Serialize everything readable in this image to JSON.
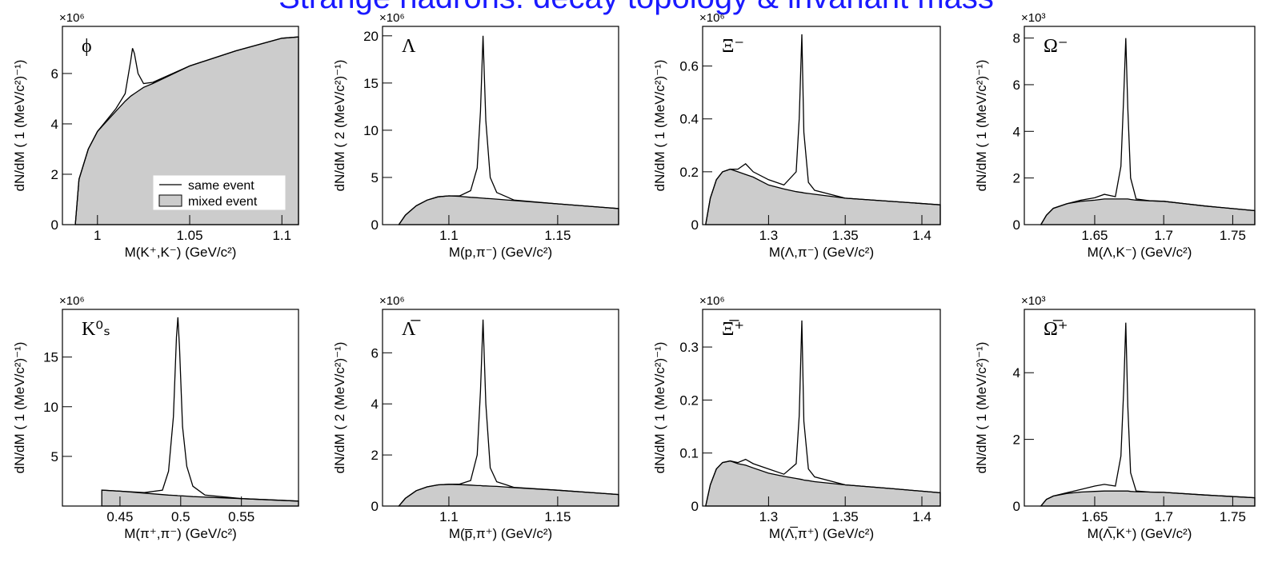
{
  "title": "Strange hadrons: decay topology & invariant mass",
  "chart_data": [
    {
      "type": "line",
      "label": "ϕ",
      "multiplier": "×10⁶",
      "xlabel": "M(K⁺,K⁻) (GeV/c²)",
      "ylabel": "dN/dM ( 1 (MeV/c²)⁻¹)",
      "xlim": [
        0.981,
        1.109
      ],
      "xticks": [
        1,
        1.05,
        1.1
      ],
      "ylim": [
        0,
        7.87
      ],
      "yticks": [
        0,
        2,
        4,
        6
      ],
      "legend": "lower right",
      "x": [
        0.988,
        0.99,
        0.995,
        1.0,
        1.01,
        1.015,
        1.018,
        1.019,
        1.02,
        1.022,
        1.025,
        1.03,
        1.05,
        1.075,
        1.1,
        1.109
      ],
      "series": [
        {
          "name": "mixed event",
          "color": "#cccccc",
          "fill": true,
          "values": [
            0,
            1.8,
            3.0,
            3.7,
            4.5,
            4.9,
            5.1,
            5.15,
            5.2,
            5.3,
            5.45,
            5.6,
            6.3,
            6.9,
            7.4,
            7.45
          ]
        },
        {
          "name": "same event",
          "color": "#000000",
          "values": [
            0,
            1.8,
            3.0,
            3.7,
            4.6,
            5.2,
            6.5,
            7.0,
            6.8,
            6.0,
            5.6,
            5.65,
            6.3,
            6.9,
            7.4,
            7.45
          ]
        }
      ]
    },
    {
      "type": "line",
      "label": "Λ",
      "multiplier": "×10⁶",
      "xlabel": "M(p,π⁻) (GeV/c²)",
      "ylabel": "dN/dM ( 2 (MeV/c²)⁻¹)",
      "xlim": [
        1.0695,
        1.178
      ],
      "xticks": [
        1.1,
        1.15
      ],
      "ylim": [
        0,
        21
      ],
      "yticks": [
        0,
        5,
        10,
        15,
        20
      ],
      "x": [
        1.077,
        1.08,
        1.085,
        1.09,
        1.095,
        1.1,
        1.105,
        1.11,
        1.113,
        1.1145,
        1.1157,
        1.117,
        1.119,
        1.122,
        1.13,
        1.15,
        1.178
      ],
      "series": [
        {
          "color": "#cccccc",
          "fill": true,
          "values": [
            0,
            1.0,
            2.0,
            2.6,
            2.95,
            3.05,
            3.0,
            2.9,
            2.85,
            2.83,
            2.8,
            2.78,
            2.75,
            2.7,
            2.55,
            2.2,
            1.7
          ]
        },
        {
          "color": "#000000",
          "values": [
            0,
            1.0,
            2.0,
            2.6,
            2.95,
            3.05,
            3.05,
            3.6,
            6,
            12,
            20,
            11,
            5,
            3.4,
            2.6,
            2.2,
            1.7
          ]
        }
      ]
    },
    {
      "type": "line",
      "label": "Ξ⁻",
      "multiplier": "×10⁶",
      "xlabel": "M(Λ,π⁻) (GeV/c²)",
      "ylabel": "dN/dM ( 1 (MeV/c²)⁻¹)",
      "xlim": [
        1.257,
        1.412
      ],
      "xticks": [
        1.3,
        1.35,
        1.4
      ],
      "ylim": [
        0,
        0.75
      ],
      "yticks": [
        0,
        0.2,
        0.4,
        0.6
      ],
      "x": [
        1.259,
        1.262,
        1.266,
        1.27,
        1.275,
        1.28,
        1.285,
        1.29,
        1.3,
        1.31,
        1.318,
        1.32,
        1.3217,
        1.323,
        1.326,
        1.33,
        1.35,
        1.38,
        1.412
      ],
      "series": [
        {
          "color": "#cccccc",
          "fill": true,
          "values": [
            0,
            0.1,
            0.17,
            0.2,
            0.21,
            0.2,
            0.19,
            0.18,
            0.15,
            0.135,
            0.125,
            0.123,
            0.122,
            0.12,
            0.118,
            0.115,
            0.1,
            0.088,
            0.075
          ]
        },
        {
          "color": "#000000",
          "values": [
            0,
            0.1,
            0.17,
            0.2,
            0.21,
            0.21,
            0.23,
            0.2,
            0.17,
            0.15,
            0.2,
            0.4,
            0.72,
            0.35,
            0.16,
            0.13,
            0.1,
            0.088,
            0.075
          ]
        }
      ]
    },
    {
      "type": "line",
      "label": "Ω⁻",
      "multiplier": "×10³",
      "xlabel": "M(Λ,K⁻) (GeV/c²)",
      "ylabel": "dN/dM ( 1 (MeV/c²)⁻¹)",
      "xlim": [
        1.599,
        1.766
      ],
      "xticks": [
        1.65,
        1.7,
        1.75
      ],
      "ylim": [
        0,
        8.5
      ],
      "yticks": [
        0,
        2,
        4,
        6,
        8
      ],
      "x": [
        1.611,
        1.615,
        1.62,
        1.63,
        1.64,
        1.65,
        1.657,
        1.665,
        1.669,
        1.671,
        1.6725,
        1.674,
        1.676,
        1.68,
        1.69,
        1.7,
        1.73,
        1.766
      ],
      "series": [
        {
          "color": "#cccccc",
          "fill": true,
          "values": [
            0,
            0.4,
            0.7,
            0.9,
            1.0,
            1.05,
            1.1,
            1.1,
            1.1,
            1.1,
            1.1,
            1.1,
            1.08,
            1.05,
            1.02,
            1.0,
            0.8,
            0.6
          ]
        },
        {
          "color": "#000000",
          "values": [
            0,
            0.4,
            0.7,
            0.9,
            1.05,
            1.15,
            1.3,
            1.2,
            2.5,
            5.5,
            8.0,
            5.0,
            2.0,
            1.1,
            1.02,
            1.0,
            0.8,
            0.6
          ]
        }
      ]
    },
    {
      "type": "line",
      "label": "K⁰ₛ",
      "multiplier": "×10⁶",
      "xlabel": "M(π⁺,π⁻) (GeV/c²)",
      "ylabel": "dN/dM ( 1 (MeV/c²)⁻¹)",
      "xlim": [
        0.4026,
        0.597
      ],
      "xticks": [
        0.45,
        0.5,
        0.55
      ],
      "ylim": [
        0,
        19.8
      ],
      "yticks": [
        5,
        10,
        15
      ],
      "x": [
        0.435,
        0.45,
        0.47,
        0.485,
        0.49,
        0.494,
        0.4965,
        0.4977,
        0.499,
        0.5015,
        0.505,
        0.51,
        0.52,
        0.55,
        0.597
      ],
      "series": [
        {
          "color": "#cccccc",
          "fill": true,
          "values": [
            1.6,
            1.5,
            1.3,
            1.15,
            1.1,
            1.08,
            1.06,
            1.05,
            1.04,
            1.02,
            1.0,
            0.95,
            0.9,
            0.75,
            0.5
          ]
        },
        {
          "color": "#000000",
          "values": [
            1.6,
            1.5,
            1.35,
            1.6,
            3.5,
            9,
            17,
            19,
            16,
            8,
            4,
            2,
            1.1,
            0.75,
            0.5
          ]
        }
      ]
    },
    {
      "type": "line",
      "label": "Λ̅",
      "multiplier": "×10⁶",
      "xlabel": "M(p̅,π⁺) (GeV/c²)",
      "ylabel": "dN/dM ( 2 (MeV/c²)⁻¹)",
      "xlim": [
        1.0695,
        1.178
      ],
      "xticks": [
        1.1,
        1.15
      ],
      "ylim": [
        0,
        7.7
      ],
      "yticks": [
        0,
        2,
        4,
        6
      ],
      "x": [
        1.077,
        1.08,
        1.085,
        1.09,
        1.095,
        1.1,
        1.105,
        1.11,
        1.113,
        1.1145,
        1.1157,
        1.117,
        1.119,
        1.122,
        1.13,
        1.15,
        1.178
      ],
      "series": [
        {
          "color": "#cccccc",
          "fill": true,
          "values": [
            0,
            0.3,
            0.6,
            0.75,
            0.83,
            0.85,
            0.84,
            0.82,
            0.8,
            0.8,
            0.79,
            0.79,
            0.78,
            0.77,
            0.72,
            0.62,
            0.45
          ]
        },
        {
          "color": "#000000",
          "values": [
            0,
            0.3,
            0.6,
            0.75,
            0.83,
            0.85,
            0.86,
            1.0,
            2.0,
            4.5,
            7.3,
            4.0,
            1.5,
            0.95,
            0.73,
            0.62,
            0.45
          ]
        }
      ]
    },
    {
      "type": "line",
      "label": "Ξ̅⁺",
      "multiplier": "×10⁶",
      "xlabel": "M(Λ̅,π⁺) (GeV/c²)",
      "ylabel": "dN/dM ( 1 (MeV/c²)⁻¹)",
      "xlim": [
        1.257,
        1.412
      ],
      "xticks": [
        1.3,
        1.35,
        1.4
      ],
      "ylim": [
        0,
        0.371
      ],
      "yticks": [
        0,
        0.1,
        0.2,
        0.3
      ],
      "x": [
        1.259,
        1.262,
        1.266,
        1.27,
        1.275,
        1.28,
        1.285,
        1.29,
        1.3,
        1.31,
        1.318,
        1.32,
        1.3217,
        1.323,
        1.326,
        1.33,
        1.35,
        1.38,
        1.412
      ],
      "series": [
        {
          "color": "#cccccc",
          "fill": true,
          "values": [
            0,
            0.04,
            0.07,
            0.082,
            0.085,
            0.08,
            0.077,
            0.072,
            0.062,
            0.056,
            0.052,
            0.051,
            0.05,
            0.049,
            0.048,
            0.046,
            0.04,
            0.033,
            0.025
          ]
        },
        {
          "color": "#000000",
          "values": [
            0,
            0.04,
            0.07,
            0.082,
            0.085,
            0.082,
            0.088,
            0.08,
            0.07,
            0.06,
            0.08,
            0.17,
            0.35,
            0.16,
            0.07,
            0.055,
            0.04,
            0.033,
            0.025
          ]
        }
      ]
    },
    {
      "type": "line",
      "label": "Ω̅⁺",
      "multiplier": "×10³",
      "xlabel": "M(Λ̅,K⁺) (GeV/c²)",
      "ylabel": "dN/dM ( 1 (MeV/c²)⁻¹)",
      "xlim": [
        1.599,
        1.766
      ],
      "xticks": [
        1.65,
        1.7,
        1.75
      ],
      "ylim": [
        0,
        5.9
      ],
      "yticks": [
        0,
        2,
        4
      ],
      "x": [
        1.611,
        1.615,
        1.62,
        1.63,
        1.64,
        1.65,
        1.657,
        1.665,
        1.669,
        1.671,
        1.6725,
        1.674,
        1.676,
        1.68,
        1.69,
        1.7,
        1.73,
        1.766
      ],
      "series": [
        {
          "color": "#cccccc",
          "fill": true,
          "values": [
            0,
            0.2,
            0.3,
            0.38,
            0.42,
            0.44,
            0.45,
            0.45,
            0.45,
            0.45,
            0.45,
            0.45,
            0.44,
            0.43,
            0.42,
            0.41,
            0.33,
            0.25
          ]
        },
        {
          "color": "#000000",
          "values": [
            0,
            0.2,
            0.3,
            0.4,
            0.5,
            0.6,
            0.65,
            0.6,
            1.5,
            3.5,
            5.5,
            3.0,
            1.0,
            0.45,
            0.42,
            0.41,
            0.33,
            0.25
          ]
        }
      ]
    }
  ]
}
